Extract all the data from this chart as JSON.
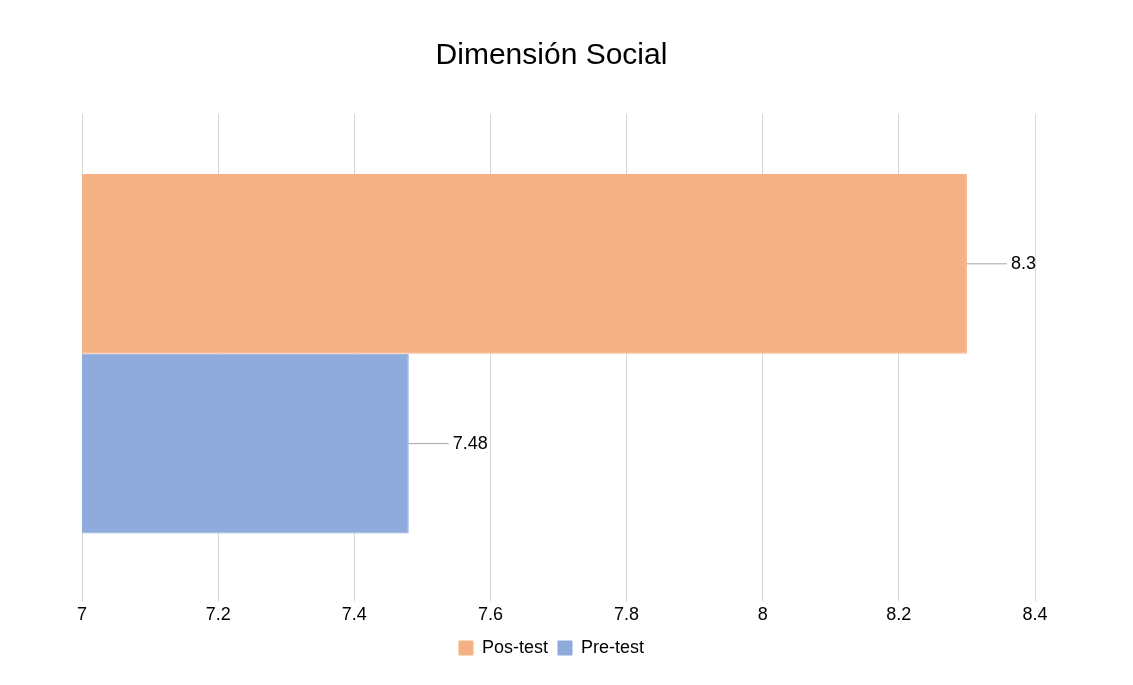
{
  "chart_data": {
    "type": "bar",
    "orientation": "horizontal",
    "title": "Dimensión Social",
    "categories": [
      null
    ],
    "series": [
      {
        "name": "Pos-test",
        "color": "#f4b183",
        "values": [
          8.3
        ]
      },
      {
        "name": "Pre-test",
        "color": "#8faadc",
        "values": [
          7.48
        ]
      }
    ],
    "xlim": [
      7,
      8.4
    ],
    "xticks": [
      7,
      7.2,
      7.4,
      7.6,
      7.8,
      8,
      8.2,
      8.4
    ],
    "grid": "x",
    "legend": "bottom",
    "data_labels": true
  }
}
